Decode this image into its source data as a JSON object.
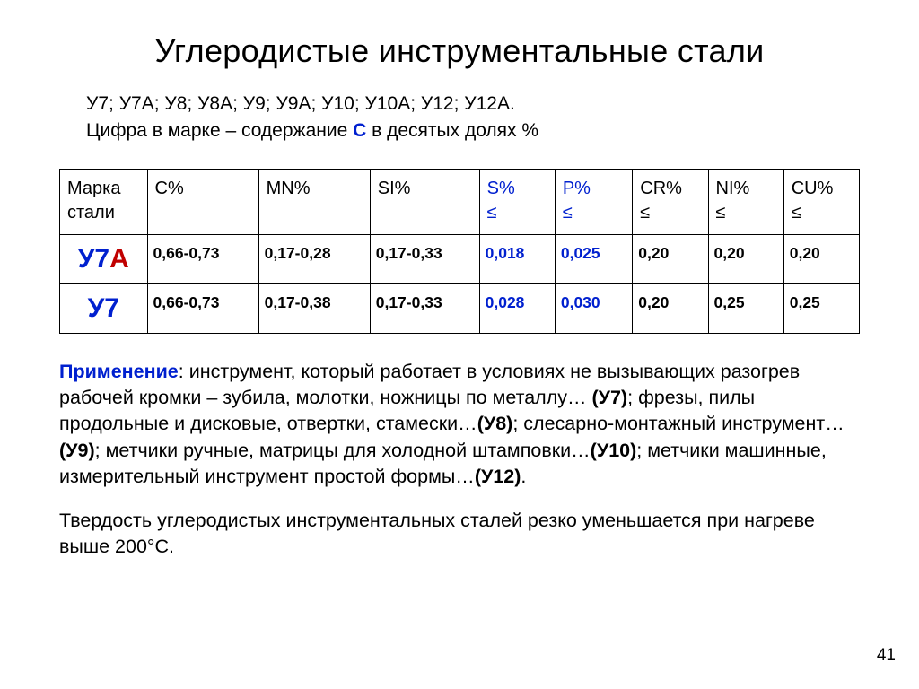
{
  "title": "Углеродистые инструментальные стали",
  "grades_line": "У7;  У7А;  У8;  У8А;  У9;  У9А;  У10;  У10А;  У12;  У12А.",
  "subtitle_pre": "Цифра в марке – содержание ",
  "subtitle_C": "С",
  "subtitle_post": " в десятых долях %",
  "table": {
    "headers": [
      {
        "label": "Марка стали",
        "sub": "",
        "blue": false
      },
      {
        "label": "C%",
        "sub": "",
        "blue": false
      },
      {
        "label": "MN%",
        "sub": "",
        "blue": false
      },
      {
        "label": "SI%",
        "sub": "",
        "blue": false
      },
      {
        "label": "S%",
        "sub": "≤",
        "blue": true
      },
      {
        "label": "P%",
        "sub": "≤",
        "blue": true
      },
      {
        "label": "CR%",
        "sub": "≤",
        "blue": false
      },
      {
        "label": "NI%",
        "sub": "≤",
        "blue": false
      },
      {
        "label": "CU%",
        "sub": "≤",
        "blue": false
      }
    ],
    "rows": [
      {
        "grade_main": "У7",
        "grade_suffix": "А",
        "suffix_color": "red",
        "cells": [
          {
            "v": "0,66-0,73",
            "blue": false
          },
          {
            "v": "0,17-0,28",
            "blue": false
          },
          {
            "v": "0,17-0,33",
            "blue": false
          },
          {
            "v": "0,018",
            "blue": true
          },
          {
            "v": "0,025",
            "blue": true
          },
          {
            "v": "0,20",
            "blue": false
          },
          {
            "v": "0,20",
            "blue": false
          },
          {
            "v": "0,20",
            "blue": false
          }
        ]
      },
      {
        "grade_main": "У7",
        "grade_suffix": "",
        "suffix_color": "",
        "cells": [
          {
            "v": "0,66-0,73",
            "blue": false
          },
          {
            "v": "0,17-0,38",
            "blue": false
          },
          {
            "v": "0,17-0,33",
            "blue": false
          },
          {
            "v": "0,028",
            "blue": true
          },
          {
            "v": "0,030",
            "blue": true
          },
          {
            "v": "0,20",
            "blue": false
          },
          {
            "v": "0,25",
            "blue": false
          },
          {
            "v": "0,25",
            "blue": false
          }
        ]
      }
    ],
    "col_widths": [
      "88px",
      "112px",
      "112px",
      "110px",
      "76px",
      "78px",
      "76px",
      "76px",
      "76px"
    ]
  },
  "application": {
    "lead": "Применение",
    "seg1": ": инструмент, который работает в условиях не вызывающих разогрев рабочей кромки – зубила, молотки, ножницы по металлу… ",
    "g1": "(У7)",
    "seg2": "; фрезы, пилы продольные и дисковые, отвертки, стамески…",
    "g2": "(У8)",
    "seg3": "; слесарно-монтажный инструмент…",
    "g3": "(У9)",
    "seg4": "; метчики ручные, матрицы для холодной штамповки…",
    "g4": "(У10)",
    "seg5": "; метчики машинные, измерительный инструмент простой формы…",
    "g5": "(У12)",
    "tail": "."
  },
  "hardness": "Твердость углеродистых инструментальных сталей резко уменьшается при нагреве выше 200°С.",
  "page_number": "41"
}
